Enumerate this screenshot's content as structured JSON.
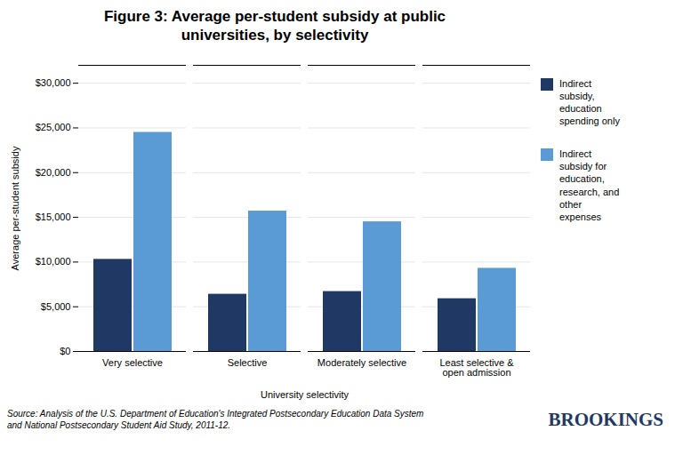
{
  "chart_data": {
    "type": "bar",
    "title": "Figure 3: Average per-student subsidy at public\nuniversities, by selectivity",
    "categories": [
      "Very selective",
      "Selective",
      "Moderately selective",
      "Least selective &\nopen admission"
    ],
    "series": [
      {
        "name": "Indirect\nsubsidy,\neducation\nspending only",
        "color": "#1F3864",
        "values": [
          10300,
          6400,
          6700,
          5900
        ]
      },
      {
        "name": "Indirect\nsubsidy for\neducation,\nresearch, and\nother\nexpenses",
        "color": "#5B9BD5",
        "values": [
          24500,
          15700,
          14500,
          9300
        ]
      }
    ],
    "xlabel": "University selectivity",
    "ylabel": "Average per-student subsidy",
    "ylim": [
      0,
      32000
    ],
    "yticks": [
      {
        "value": 0,
        "label": "$0"
      },
      {
        "value": 5000,
        "label": "$5,000"
      },
      {
        "value": 10000,
        "label": "$10,000"
      },
      {
        "value": 15000,
        "label": "$15,000"
      },
      {
        "value": 20000,
        "label": "$20,000"
      },
      {
        "value": 25000,
        "label": "$25,000"
      },
      {
        "value": 30000,
        "label": "$30,000"
      }
    ],
    "grid": true,
    "legend": "right",
    "annotations": [
      "Source: Analysis of the U.S. Department of Education's Integrated Postsecondary Education Data System\nand National Postsecondary Student Aid Study, 2011-12.",
      "BROOKINGS"
    ]
  }
}
